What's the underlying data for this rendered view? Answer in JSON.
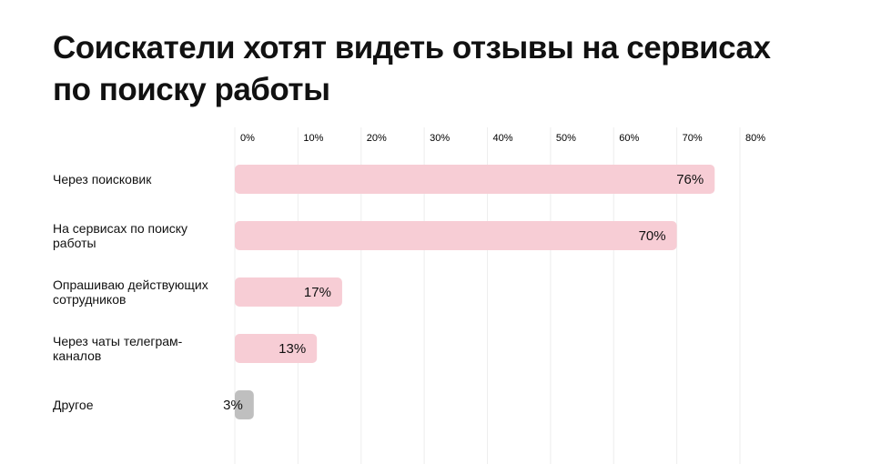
{
  "chart_data": {
    "type": "bar",
    "orientation": "horizontal",
    "title": "Соискатели хотят видеть отзывы на сервисах по поиску работы",
    "categories": [
      "Через поисковик",
      "На сервисах по поиску работы",
      "Опрашиваю действующих сотрудников",
      "Через чаты телеграм-каналов",
      "Другое"
    ],
    "values": [
      76,
      70,
      17,
      13,
      3
    ],
    "value_labels": [
      "76%",
      "70%",
      "17%",
      "13%",
      "3%"
    ],
    "colors": [
      "#f7cdd5",
      "#f7cdd5",
      "#f7cdd5",
      "#f7cdd5",
      "#bfbfbf"
    ],
    "xlim": [
      0,
      80
    ],
    "xticks": [
      {
        "value": 0,
        "label": "0%"
      },
      {
        "value": 10,
        "label": "10%"
      },
      {
        "value": 20,
        "label": "20%"
      },
      {
        "value": 30,
        "label": "30%"
      },
      {
        "value": 40,
        "label": "40%"
      },
      {
        "value": 50,
        "label": "50%"
      },
      {
        "value": 60,
        "label": "60%"
      },
      {
        "value": 70,
        "label": "70%"
      },
      {
        "value": 80,
        "label": "80%"
      }
    ],
    "grid": true
  }
}
